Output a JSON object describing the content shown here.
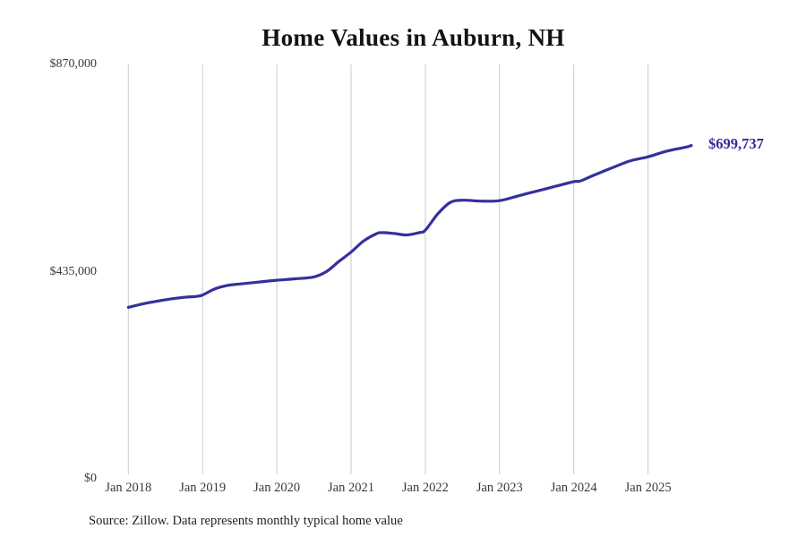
{
  "chart_data": {
    "type": "line",
    "title": "Home Values in Auburn, NH",
    "source_note": "Source: Zillow. Data represents monthly typical home value",
    "end_label": "$699,737",
    "series_name": "Monthly typical home value",
    "line_color": "#35309d",
    "end_label_color": "#2f2b96",
    "grid_color": "#cbcbcb",
    "axis_text_color": "#3a3a3a",
    "title_color": "#131313",
    "background_color": "#ffffff",
    "legend": "none",
    "grid": "vertical-only",
    "ylim": [
      0,
      870000
    ],
    "y_ticks": [
      {
        "label": "$870,000",
        "value": 870000
      },
      {
        "label": "$435,000",
        "value": 435000
      },
      {
        "label": "$0",
        "value": 0
      }
    ],
    "x_ticks": [
      {
        "label": "Jan 2018",
        "year": 2018
      },
      {
        "label": "Jan 2019",
        "year": 2019
      },
      {
        "label": "Jan 2020",
        "year": 2020
      },
      {
        "label": "Jan 2021",
        "year": 2021
      },
      {
        "label": "Jan 2022",
        "year": 2022
      },
      {
        "label": "Jan 2023",
        "year": 2023
      },
      {
        "label": "Jan 2024",
        "year": 2024
      },
      {
        "label": "Jan 2025",
        "year": 2025
      }
    ],
    "points": [
      {
        "date": "2018-01",
        "value": 360000
      },
      {
        "date": "2018-04",
        "value": 369000
      },
      {
        "date": "2018-07",
        "value": 376000
      },
      {
        "date": "2018-10",
        "value": 381000
      },
      {
        "date": "2018-12",
        "value": 383000
      },
      {
        "date": "2019-01",
        "value": 386000
      },
      {
        "date": "2019-03",
        "value": 399000
      },
      {
        "date": "2019-05",
        "value": 406000
      },
      {
        "date": "2019-07",
        "value": 409000
      },
      {
        "date": "2019-10",
        "value": 413000
      },
      {
        "date": "2020-01",
        "value": 417000
      },
      {
        "date": "2020-04",
        "value": 420000
      },
      {
        "date": "2020-07",
        "value": 424000
      },
      {
        "date": "2020-09",
        "value": 435000
      },
      {
        "date": "2020-11",
        "value": 456000
      },
      {
        "date": "2021-01",
        "value": 476000
      },
      {
        "date": "2021-03",
        "value": 499000
      },
      {
        "date": "2021-05",
        "value": 514000
      },
      {
        "date": "2021-06",
        "value": 517000
      },
      {
        "date": "2021-08",
        "value": 515000
      },
      {
        "date": "2021-10",
        "value": 512000
      },
      {
        "date": "2021-12",
        "value": 517000
      },
      {
        "date": "2022-01",
        "value": 522000
      },
      {
        "date": "2022-03",
        "value": 556000
      },
      {
        "date": "2022-05",
        "value": 580000
      },
      {
        "date": "2022-07",
        "value": 585000
      },
      {
        "date": "2022-10",
        "value": 583000
      },
      {
        "date": "2023-01",
        "value": 584000
      },
      {
        "date": "2023-04",
        "value": 594000
      },
      {
        "date": "2023-07",
        "value": 604000
      },
      {
        "date": "2023-10",
        "value": 614000
      },
      {
        "date": "2024-01",
        "value": 624000
      },
      {
        "date": "2024-02",
        "value": 625000
      },
      {
        "date": "2024-04",
        "value": 636000
      },
      {
        "date": "2024-07",
        "value": 652000
      },
      {
        "date": "2024-10",
        "value": 667000
      },
      {
        "date": "2025-01",
        "value": 676000
      },
      {
        "date": "2025-04",
        "value": 688000
      },
      {
        "date": "2025-07",
        "value": 696000
      },
      {
        "date": "2025-08",
        "value": 699737
      }
    ]
  }
}
